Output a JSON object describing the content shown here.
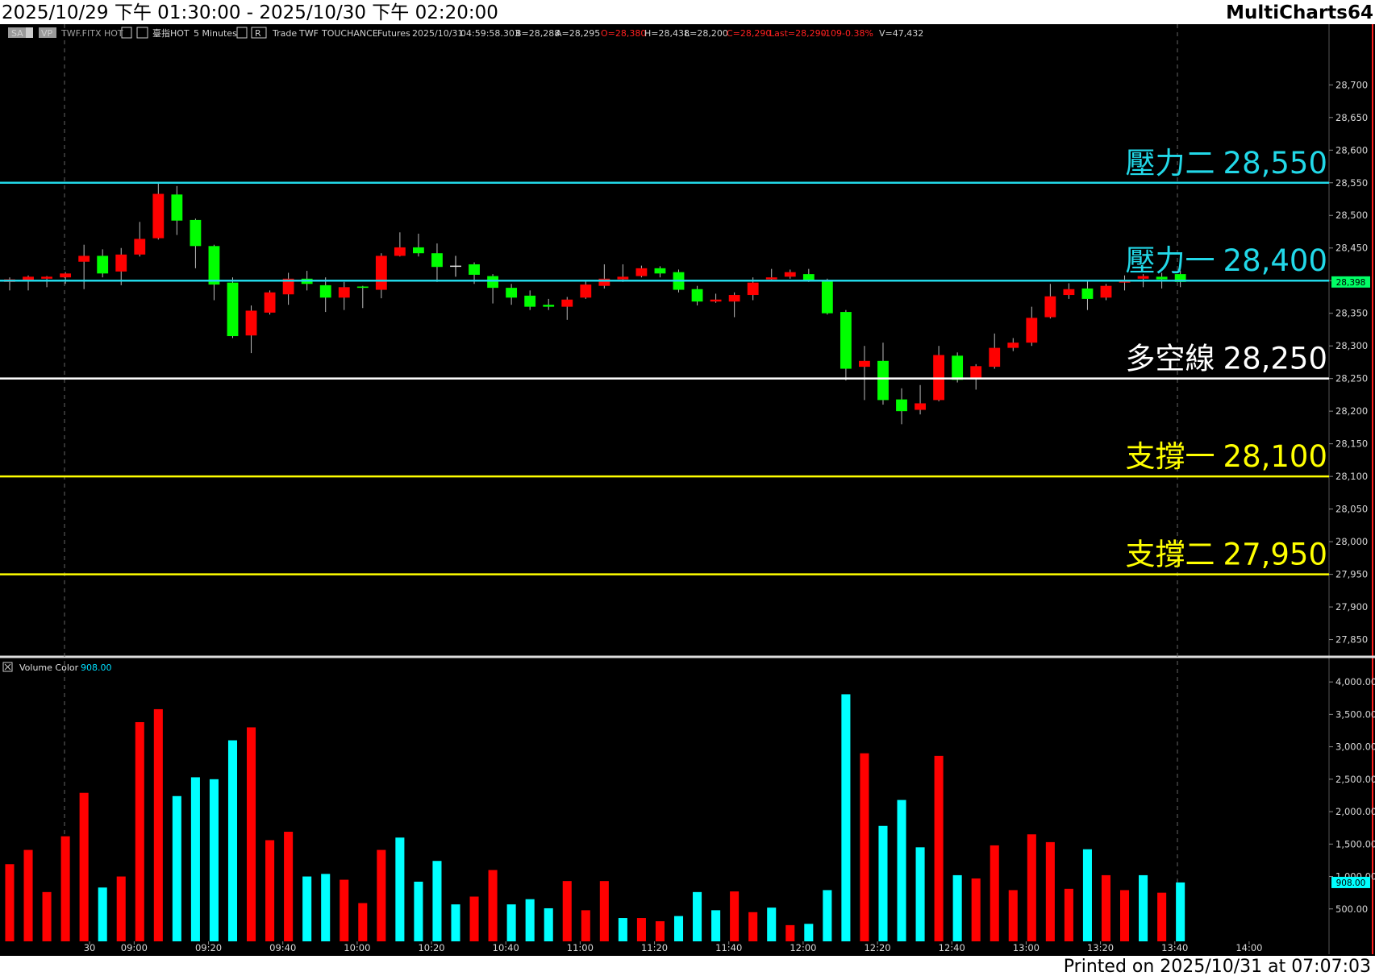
{
  "header": {
    "title": "2025/10/29 下午 01:30:00 - 2025/10/30 下午 02:20:00",
    "brand": "MultiCharts64"
  },
  "toolbar": [
    "SA",
    "VP",
    "TWF.FITX HOT",
    "臺指HOT",
    "5 Minutes",
    "R",
    "Trade",
    "TWF",
    "TOUCHANCE",
    "Futures",
    "2025/10/31",
    "04:59:58.303",
    "B=28,288",
    "A=28,295",
    "O=28,380",
    "H=28,438",
    "L=28,200",
    "C=28,290",
    "Last=28,290",
    "-109",
    "-0.38%",
    "V=47,432"
  ],
  "footer": "Printed on 2025/10/31 at 07:07:03",
  "chart_data": [
    {
      "type": "candlestick",
      "x": [
        0,
        1,
        2,
        3,
        4,
        5,
        6,
        7,
        8,
        9,
        10,
        11,
        12,
        13,
        14,
        15,
        16,
        17,
        18,
        19,
        20,
        21,
        22,
        23,
        24,
        25,
        26,
        27,
        28,
        29,
        30,
        31,
        32,
        33,
        34,
        35,
        36,
        37,
        38,
        39,
        40,
        41,
        42,
        43,
        44,
        45,
        46,
        47,
        48,
        49,
        50,
        51,
        52,
        53,
        54,
        55,
        56,
        57,
        58,
        59,
        60,
        61,
        62,
        63
      ],
      "open": [
        28398,
        28401,
        28403,
        28405,
        28429,
        28438,
        28414,
        28440,
        28465,
        28532,
        28493,
        28453,
        28397,
        28316,
        28351,
        28379,
        28403,
        28393,
        28374,
        28391,
        28386,
        28438,
        28451,
        28442,
        28423,
        28425,
        28407,
        28389,
        28377,
        28363,
        28360,
        28374,
        28392,
        28402,
        28407,
        28419,
        28413,
        28387,
        28368,
        28368,
        28378,
        28402,
        28406,
        28410,
        28400,
        28352,
        28268,
        28277,
        28218,
        28202,
        28217,
        28285,
        28250,
        28268,
        28297,
        28305,
        28344,
        28378,
        28388,
        28374,
        28397,
        28403,
        28406,
        28410
      ],
      "high": [
        28405,
        28408,
        28407,
        28413,
        28455,
        28448,
        28450,
        28490,
        28550,
        28545,
        28495,
        28455,
        28405,
        28362,
        28385,
        28412,
        28415,
        28405,
        28398,
        28392,
        28442,
        28474,
        28472,
        28457,
        28438,
        28428,
        28410,
        28395,
        28385,
        28372,
        28375,
        28400,
        28425,
        28425,
        28423,
        28422,
        28417,
        28392,
        28380,
        28382,
        28405,
        28418,
        28417,
        28418,
        28403,
        28355,
        28300,
        28305,
        28235,
        28240,
        28300,
        28290,
        28272,
        28319,
        28312,
        28360,
        28395,
        28396,
        28400,
        28395,
        28408,
        28410,
        28412,
        28415
      ],
      "low": [
        28385,
        28385,
        28390,
        28395,
        28387,
        28405,
        28393,
        28437,
        28463,
        28470,
        28419,
        28370,
        28312,
        28289,
        28348,
        28363,
        28385,
        28352,
        28355,
        28358,
        28373,
        28437,
        28437,
        28398,
        28406,
        28395,
        28365,
        28363,
        28355,
        28355,
        28340,
        28372,
        28388,
        28398,
        28405,
        28405,
        28382,
        28362,
        28366,
        28344,
        28370,
        28400,
        28403,
        28398,
        28348,
        28247,
        28217,
        28210,
        28180,
        28195,
        28215,
        28244,
        28233,
        28265,
        28292,
        28300,
        28342,
        28372,
        28355,
        28370,
        28385,
        28390,
        28388,
        28390
      ],
      "close": [
        28402,
        28406,
        28406,
        28411,
        28438,
        28411,
        28440,
        28464,
        28533,
        28492,
        28453,
        28394,
        28315,
        28354,
        28382,
        28403,
        28395,
        28374,
        28390,
        28389,
        28438,
        28451,
        28442,
        28421,
        28423,
        28409,
        28389,
        28374,
        28360,
        28360,
        28371,
        28394,
        28403,
        28406,
        28419,
        28411,
        28386,
        28368,
        28371,
        28378,
        28397,
        28405,
        28413,
        28400,
        28350,
        28265,
        28277,
        28217,
        28200,
        28212,
        28286,
        28248,
        28269,
        28297,
        28305,
        28343,
        28376,
        28387,
        28372,
        28392,
        28400,
        28407,
        28402,
        28398
      ],
      "up_color": "#ff0000",
      "down_color": "#00ff00",
      "last_label": "28,398",
      "last_color": "#00ff66",
      "xlim": [
        -0.52,
        71.0
      ],
      "ylim": [
        27826,
        28793
      ],
      "yticks": [
        {
          "value": 27850,
          "label": "27,850"
        },
        {
          "value": 27900,
          "label": "27,900"
        },
        {
          "value": 27950,
          "label": "27,950"
        },
        {
          "value": 28000,
          "label": "28,000"
        },
        {
          "value": 28050,
          "label": "28,050"
        },
        {
          "value": 28100,
          "label": "28,100"
        },
        {
          "value": 28150,
          "label": "28,150"
        },
        {
          "value": 28200,
          "label": "28,200"
        },
        {
          "value": 28250,
          "label": "28,250"
        },
        {
          "value": 28300,
          "label": "28,300"
        },
        {
          "value": 28350,
          "label": "28,350"
        },
        {
          "value": 28400,
          "label": "28,400"
        },
        {
          "value": 28450,
          "label": "28,450"
        },
        {
          "value": 28500,
          "label": "28,500"
        },
        {
          "value": 28550,
          "label": "28,550"
        },
        {
          "value": 28600,
          "label": "28,600"
        },
        {
          "value": 28650,
          "label": "28,650"
        },
        {
          "value": 28700,
          "label": "28,700"
        }
      ],
      "levels": [
        {
          "label": "壓力二",
          "value": 28550,
          "value_label": "28,550",
          "color": "#22d8e8"
        },
        {
          "label": "壓力一",
          "value": 28400,
          "value_label": "28,400",
          "color": "#22d8e8"
        },
        {
          "label": "多空線",
          "value": 28250,
          "value_label": "28,250",
          "color": "#ffffff"
        },
        {
          "label": "支撐一",
          "value": 28100,
          "value_label": "28,100",
          "color": "#ffff00"
        },
        {
          "label": "支撐二",
          "value": 27950,
          "value_label": "27,950",
          "color": "#ffff00"
        }
      ]
    },
    {
      "type": "bar",
      "title": "Volume Color",
      "x": [
        0,
        1,
        2,
        3,
        4,
        5,
        6,
        7,
        8,
        9,
        10,
        11,
        12,
        13,
        14,
        15,
        16,
        17,
        18,
        19,
        20,
        21,
        22,
        23,
        24,
        25,
        26,
        27,
        28,
        29,
        30,
        31,
        32,
        33,
        34,
        35,
        36,
        37,
        38,
        39,
        40,
        41,
        42,
        43,
        44,
        45,
        46,
        47,
        48,
        49,
        50,
        51,
        52,
        53,
        54,
        55,
        56,
        57,
        58,
        59,
        60,
        61,
        62,
        63
      ],
      "values": [
        1190,
        1410,
        760,
        1620,
        2290,
        830,
        1000,
        3380,
        3580,
        2240,
        2530,
        2500,
        3100,
        3300,
        1560,
        1690,
        1000,
        1040,
        950,
        590,
        1410,
        1600,
        920,
        1240,
        570,
        690,
        1100,
        570,
        650,
        510,
        930,
        480,
        930,
        360,
        360,
        310,
        390,
        760,
        480,
        770,
        450,
        520,
        250,
        270,
        790,
        3810,
        2900,
        1780,
        2180,
        1450,
        2860,
        1020,
        970,
        1480,
        790,
        1650,
        1530,
        810,
        1420,
        1020,
        790,
        1020,
        750,
        908
      ],
      "value_labels": [
        null,
        null,
        null,
        null,
        null,
        null,
        null,
        null,
        null,
        null,
        null,
        null,
        null,
        null,
        null,
        null,
        null,
        null,
        null,
        null,
        null,
        null,
        null,
        null,
        null,
        null,
        null,
        null,
        null,
        null,
        null,
        null,
        null,
        null,
        null,
        null,
        null,
        null,
        null,
        null,
        null,
        null,
        null,
        null,
        null,
        null,
        null,
        null,
        null,
        null,
        null,
        null,
        null,
        null,
        null,
        null,
        null,
        null,
        null,
        null,
        null,
        null,
        null,
        "908.00"
      ],
      "colors": [
        "#ff0000",
        "#ff0000",
        "#ff0000",
        "#ff0000",
        "#ff0000",
        "#00ffff",
        "#ff0000",
        "#ff0000",
        "#ff0000",
        "#00ffff",
        "#00ffff",
        "#00ffff",
        "#00ffff",
        "#ff0000",
        "#ff0000",
        "#ff0000",
        "#00ffff",
        "#00ffff",
        "#ff0000",
        "#ff0000",
        "#ff0000",
        "#00ffff",
        "#00ffff",
        "#00ffff",
        "#00ffff",
        "#ff0000",
        "#ff0000",
        "#00ffff",
        "#00ffff",
        "#00ffff",
        "#ff0000",
        "#ff0000",
        "#ff0000",
        "#00ffff",
        "#ff0000",
        "#ff0000",
        "#00ffff",
        "#00ffff",
        "#00ffff",
        "#ff0000",
        "#ff0000",
        "#00ffff",
        "#ff0000",
        "#00ffff",
        "#00ffff",
        "#00ffff",
        "#ff0000",
        "#00ffff",
        "#00ffff",
        "#00ffff",
        "#ff0000",
        "#00ffff",
        "#ff0000",
        "#ff0000",
        "#ff0000",
        "#ff0000",
        "#ff0000",
        "#ff0000",
        "#00ffff",
        "#ff0000",
        "#ff0000",
        "#00ffff",
        "#ff0000",
        "#00ffff"
      ],
      "xlim": [
        -0.52,
        71.0
      ],
      "ylim": [
        0,
        4300
      ],
      "xticks": [
        {
          "value": 4.3,
          "label": "30"
        },
        {
          "value": 6.7,
          "label": "09:00"
        },
        {
          "value": 10.7,
          "label": "09:20"
        },
        {
          "value": 14.7,
          "label": "09:40"
        },
        {
          "value": 18.7,
          "label": "10:00"
        },
        {
          "value": 22.7,
          "label": "10:20"
        },
        {
          "value": 26.7,
          "label": "10:40"
        },
        {
          "value": 30.7,
          "label": "11:00"
        },
        {
          "value": 34.7,
          "label": "11:20"
        },
        {
          "value": 38.7,
          "label": "11:40"
        },
        {
          "value": 42.7,
          "label": "12:00"
        },
        {
          "value": 46.7,
          "label": "12:20"
        },
        {
          "value": 50.7,
          "label": "12:40"
        },
        {
          "value": 54.7,
          "label": "13:00"
        },
        {
          "value": 58.7,
          "label": "13:20"
        },
        {
          "value": 62.7,
          "label": "13:40"
        },
        {
          "value": 66.7,
          "label": "14:00"
        }
      ],
      "yticks": [
        {
          "value": 500,
          "label": "500.00"
        },
        {
          "value": 1000,
          "label": "1,000.00"
        },
        {
          "value": 1500,
          "label": "1,500.00"
        },
        {
          "value": 2000,
          "label": "2,000.00"
        },
        {
          "value": 2500,
          "label": "2,500.00"
        },
        {
          "value": 3000,
          "label": "3,000.00"
        },
        {
          "value": 3500,
          "label": "3,500.00"
        },
        {
          "value": 4000,
          "label": "4,000.00"
        }
      ]
    }
  ]
}
